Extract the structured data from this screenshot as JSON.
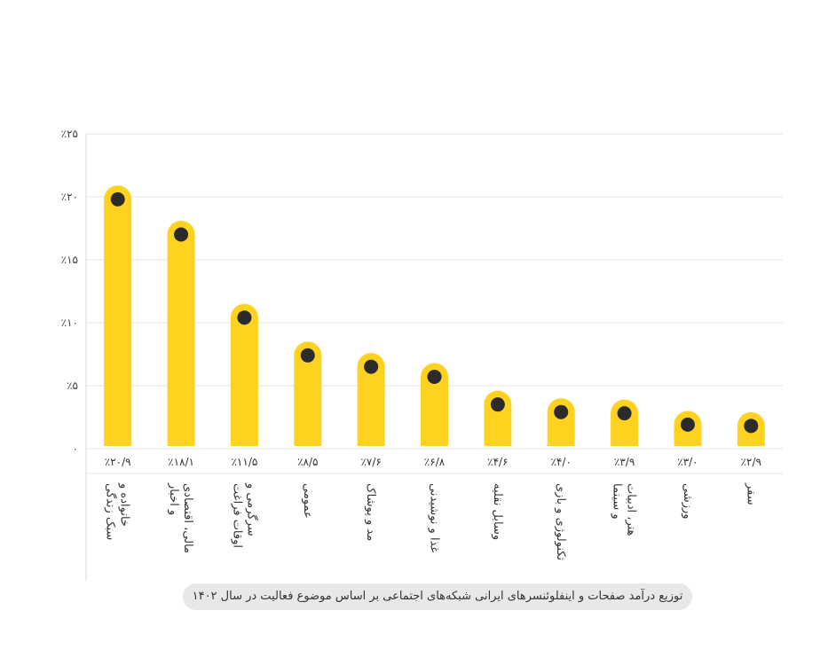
{
  "chart_data": {
    "type": "bar",
    "title": "",
    "xlabel": "",
    "ylabel": "",
    "ylim": [
      0,
      25
    ],
    "yticks": [
      0,
      5,
      10,
      15,
      20,
      25
    ],
    "ytick_labels": [
      "۰",
      "٪۵",
      "٪۱۰",
      "٪۱۵",
      "٪۲۰",
      "٪۲۵"
    ],
    "grid": true,
    "legend": "none",
    "bar_color": "#ffd21f",
    "marker_color": "#2b2b2b",
    "categories": [
      [
        "خانواده و",
        "سبک زندگی"
      ],
      [
        "مالی، اقتصادی",
        "و اخبار"
      ],
      [
        "سرگرمی و",
        "اوقات فراغت"
      ],
      [
        "عمومی"
      ],
      [
        "مد و پوشاک"
      ],
      [
        "غذا و نوشیدنی"
      ],
      [
        "وسایل نقلیه"
      ],
      [
        "تکنولوژی و بازی"
      ],
      [
        "هنر، ادبیات",
        "و سینما"
      ],
      [
        "ورزشی"
      ],
      [
        "سفر"
      ]
    ],
    "values": [
      20.9,
      18.1,
      11.5,
      8.5,
      7.6,
      6.8,
      4.6,
      4.0,
      3.9,
      3.0,
      2.9
    ],
    "value_labels": [
      "٪۲۰/۹",
      "٪۱۸/۱",
      "٪۱۱/۵",
      "٪۸/۵",
      "٪۷/۶",
      "٪۶/۸",
      "٪۴/۶",
      "٪۴/۰",
      "٪۳/۹",
      "٪۳/۰",
      "٪۲/۹"
    ]
  },
  "caption": "توزیع درآمد صفحات و اینفلوئنسرهای ایرانی شبکه‌های اجتماعی بر اساس موضوع فعالیت در سال ۱۴۰۲"
}
